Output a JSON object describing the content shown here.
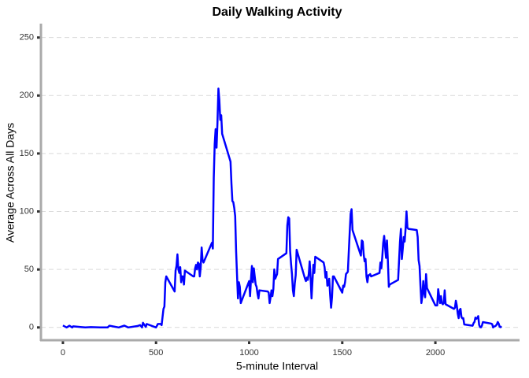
{
  "chart_data": {
    "type": "line",
    "title": "Daily Walking Activity",
    "x_label": "5-minute Interval",
    "y_label": "Average Across All Days",
    "xlim": [
      -118,
      2452
    ],
    "ylim": [
      -11,
      262
    ],
    "xticks": [
      0,
      500,
      1000,
      1500,
      2000
    ],
    "yticks": [
      0,
      50,
      100,
      150,
      200,
      250
    ],
    "grid": true,
    "series": [
      {
        "color": "#0000ff",
        "x": [
          0,
          20,
          35,
          50,
          55,
          100,
          120,
          150,
          200,
          240,
          250,
          300,
          330,
          350,
          400,
          415,
          425,
          430,
          445,
          450,
          500,
          510,
          525,
          530,
          540,
          545,
          550,
          555,
          600,
          605,
          610,
          615,
          620,
          625,
          630,
          635,
          640,
          645,
          650,
          655,
          700,
          705,
          710,
          715,
          720,
          725,
          730,
          735,
          740,
          745,
          750,
          755,
          800,
          805,
          810,
          815,
          820,
          825,
          830,
          835,
          840,
          845,
          850,
          855,
          900,
          905,
          910,
          915,
          920,
          925,
          930,
          935,
          940,
          945,
          950,
          955,
          1000,
          1005,
          1010,
          1015,
          1020,
          1025,
          1030,
          1035,
          1040,
          1045,
          1050,
          1055,
          1100,
          1105,
          1110,
          1115,
          1120,
          1125,
          1130,
          1135,
          1140,
          1145,
          1150,
          1155,
          1200,
          1205,
          1210,
          1215,
          1220,
          1225,
          1230,
          1235,
          1240,
          1245,
          1250,
          1255,
          1300,
          1305,
          1310,
          1315,
          1320,
          1325,
          1330,
          1335,
          1340,
          1345,
          1350,
          1355,
          1400,
          1405,
          1410,
          1415,
          1420,
          1425,
          1430,
          1435,
          1440,
          1445,
          1450,
          1455,
          1500,
          1505,
          1510,
          1515,
          1520,
          1525,
          1530,
          1535,
          1540,
          1545,
          1550,
          1555,
          1600,
          1605,
          1610,
          1615,
          1620,
          1625,
          1630,
          1635,
          1640,
          1645,
          1650,
          1655,
          1700,
          1705,
          1710,
          1715,
          1720,
          1725,
          1730,
          1735,
          1740,
          1745,
          1750,
          1755,
          1800,
          1805,
          1810,
          1815,
          1820,
          1825,
          1830,
          1835,
          1840,
          1845,
          1850,
          1855,
          1900,
          1905,
          1910,
          1915,
          1920,
          1925,
          1930,
          1935,
          1940,
          1945,
          1950,
          1955,
          2000,
          2005,
          2010,
          2015,
          2020,
          2025,
          2030,
          2035,
          2040,
          2045,
          2050,
          2055,
          2100,
          2105,
          2110,
          2115,
          2120,
          2125,
          2130,
          2135,
          2140,
          2145,
          2150,
          2155,
          2200,
          2205,
          2210,
          2215,
          2220,
          2225,
          2230,
          2235,
          2240,
          2245,
          2250,
          2255,
          2300,
          2305,
          2310,
          2315,
          2320,
          2325,
          2330,
          2335,
          2340,
          2345,
          2350,
          2355
        ],
        "values": [
          1.7,
          0,
          1.5,
          0,
          1,
          0.3,
          0,
          0.3,
          0,
          0,
          1.5,
          0,
          1.6,
          0,
          1.2,
          2,
          0,
          4,
          0.5,
          3,
          0,
          3,
          3,
          2,
          16,
          18,
          39,
          44,
          31,
          49,
          53,
          63,
          50,
          47,
          52,
          39,
          44,
          44,
          37,
          49,
          44,
          44,
          51,
          54,
          50,
          56,
          55,
          44,
          52,
          69,
          58,
          56,
          73,
          68,
          129,
          158,
          171,
          155,
          177,
          206,
          196,
          179,
          183,
          167,
          143,
          124,
          109,
          108,
          103,
          96,
          66,
          45,
          25,
          39,
          35,
          21,
          40,
          27,
          42,
          53,
          39,
          51,
          44,
          37,
          35,
          29,
          25,
          32,
          31,
          30,
          21,
          26,
          32,
          27,
          33,
          50,
          42,
          44,
          46,
          59,
          64,
          88,
          95,
          94,
          66,
          55,
          46,
          32,
          27,
          38,
          45,
          67,
          42,
          40,
          43,
          41,
          46,
          57,
          43,
          25,
          40,
          54,
          47,
          61,
          56,
          52,
          43,
          48,
          36,
          37,
          42,
          28,
          17,
          26,
          44,
          44,
          30,
          36,
          35,
          39,
          46,
          47,
          48,
          65,
          82,
          98,
          102,
          84,
          62,
          75,
          74,
          63,
          57,
          59,
          44,
          39,
          45,
          45,
          46,
          44,
          47,
          56,
          51,
          61,
          73,
          79,
          69,
          60,
          75,
          57,
          35,
          37,
          41,
          58,
          74,
          85,
          59,
          68,
          78,
          74,
          85,
          100,
          86,
          85,
          84,
          78,
          58,
          53,
          36,
          21,
          27,
          40,
          30,
          26,
          46,
          34,
          19,
          19,
          19,
          33,
          27,
          21,
          27,
          21,
          20,
          21,
          32,
          20,
          16,
          17,
          23,
          19,
          12,
          8,
          15,
          16,
          9,
          7.8,
          8,
          2.6,
          1.5,
          3.7,
          4.8,
          8.5,
          7.5,
          8.1,
          9.8,
          2.2,
          0.3,
          0.1,
          1.6,
          4.6,
          3.3,
          2.8,
          0,
          0.8,
          1,
          1.6,
          2.6,
          4.7,
          3.3,
          0.6,
          0.2,
          1.1
        ]
      }
    ]
  }
}
